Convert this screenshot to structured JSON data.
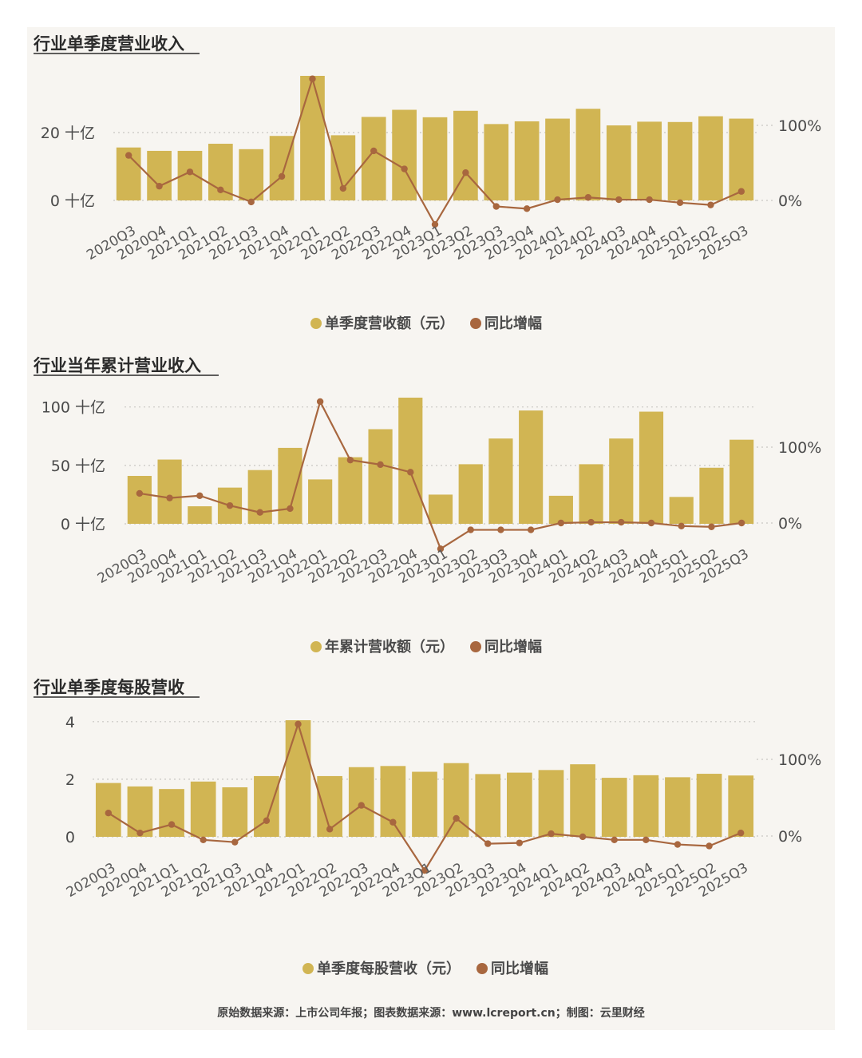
{
  "colors": {
    "bar": "#d1b553",
    "line": "#a8673f",
    "grid": "#c8c6c2",
    "background": "#f7f5f1"
  },
  "quarters": [
    "2020Q3",
    "2020Q4",
    "2021Q1",
    "2021Q2",
    "2021Q3",
    "2021Q4",
    "2022Q1",
    "2022Q2",
    "2022Q3",
    "2022Q4",
    "2023Q1",
    "2023Q2",
    "2023Q3",
    "2023Q4",
    "2024Q1",
    "2024Q2",
    "2024Q3",
    "2024Q4",
    "2025Q1",
    "2025Q2",
    "2025Q3"
  ],
  "chart_data": [
    {
      "type": "bar",
      "title": "行业单季度营业收入",
      "legend": {
        "bar": "单季度营收额（元）",
        "line": "同比增幅",
        "position": "bottom"
      },
      "y_left": {
        "ticks": [
          "0 十亿",
          "20 十亿"
        ],
        "tick_values": [
          0,
          20
        ],
        "range": [
          0,
          36.7
        ]
      },
      "y_right": {
        "ticks": [
          "0%",
          "100%"
        ],
        "tick_values": [
          0,
          100
        ],
        "range": [
          -32,
          166
        ]
      },
      "series": [
        {
          "name": "单季度营收额（元）",
          "type": "bar",
          "values": [
            15.6,
            14.6,
            14.6,
            16.7,
            15.1,
            19.0,
            36.7,
            19.2,
            24.6,
            26.7,
            24.5,
            26.4,
            22.5,
            23.3,
            24.1,
            27.0,
            22.1,
            23.2,
            23.1,
            24.8,
            24.1
          ]
        },
        {
          "name": "同比增幅",
          "type": "line",
          "values": [
            60,
            19,
            38,
            14,
            -2,
            32,
            162,
            16,
            66,
            42,
            -32,
            37,
            -8,
            -11,
            1,
            4,
            1,
            1,
            -3,
            -6,
            12
          ]
        }
      ]
    },
    {
      "type": "bar",
      "title": "行业当年累计营业收入",
      "legend": {
        "bar": "年累计营收额（元）",
        "line": "同比增幅",
        "position": "bottom"
      },
      "y_left": {
        "ticks": [
          "0 十亿",
          "50 十亿",
          "100 十亿"
        ],
        "tick_values": [
          0,
          50,
          100
        ],
        "range": [
          0,
          108
        ]
      },
      "y_right": {
        "ticks": [
          "0%",
          "100%"
        ],
        "tick_values": [
          0,
          100
        ],
        "range": [
          -34,
          160
        ]
      },
      "series": [
        {
          "name": "年累计营收额（元）",
          "type": "bar",
          "values": [
            41,
            55,
            15,
            31,
            46,
            65,
            38,
            57,
            81,
            108,
            25,
            51,
            73,
            97,
            24,
            51,
            73,
            96,
            23,
            48,
            72
          ]
        },
        {
          "name": "同比增幅",
          "type": "line",
          "values": [
            39,
            33,
            36,
            23,
            14,
            19,
            160,
            83,
            77,
            67,
            -34,
            -9,
            -9,
            -9,
            0,
            1,
            1,
            0,
            -4,
            -5,
            0
          ]
        }
      ]
    },
    {
      "type": "bar",
      "title": "行业单季度每股营收",
      "legend": {
        "bar": "单季度每股营收（元）",
        "line": "同比增幅",
        "position": "bottom"
      },
      "y_left": {
        "ticks": [
          "0",
          "2",
          "4"
        ],
        "tick_values": [
          0,
          2,
          4
        ],
        "range": [
          0,
          4.05
        ]
      },
      "y_right": {
        "ticks": [
          "0%",
          "100%"
        ],
        "tick_values": [
          0,
          100
        ],
        "range": [
          -45,
          146
        ]
      },
      "series": [
        {
          "name": "单季度每股营收（元）",
          "type": "bar",
          "values": [
            1.87,
            1.75,
            1.66,
            1.92,
            1.72,
            2.11,
            4.05,
            2.11,
            2.42,
            2.46,
            2.26,
            2.56,
            2.18,
            2.23,
            2.32,
            2.52,
            2.05,
            2.14,
            2.07,
            2.19,
            2.13
          ]
        },
        {
          "name": "同比增幅",
          "type": "line",
          "values": [
            30,
            4,
            15,
            -5,
            -8,
            20,
            146,
            9,
            40,
            18,
            -45,
            23,
            -10,
            -9,
            3,
            -1,
            -5,
            -5,
            -11,
            -13,
            4
          ]
        }
      ]
    }
  ],
  "source_text": "原始数据来源：上市公司年报；图表数据来源：www.lcreport.cn；制图：云里财经"
}
